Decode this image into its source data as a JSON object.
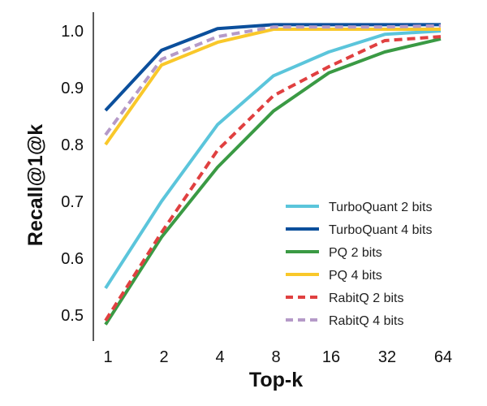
{
  "chart_data": {
    "type": "line",
    "title": "",
    "xlabel": "Top-k",
    "ylabel": "Recall@1@k",
    "categories": [
      "1",
      "2",
      "4",
      "8",
      "16",
      "32",
      "64"
    ],
    "yticks": [
      "0.5",
      "0.6",
      "0.7",
      "0.8",
      "0.9",
      "1.0"
    ],
    "ytick_values": [
      0.5,
      0.6,
      0.7,
      0.8,
      0.9,
      1.0
    ],
    "ylim": [
      0.454,
      1.033
    ],
    "grid": false,
    "legend_position": "bottom-right",
    "series": [
      {
        "name": "TurboQuant 2 bits",
        "color": "#5BC5DB",
        "dashed": false,
        "values": [
          0.547,
          0.7,
          0.835,
          0.921,
          0.963,
          0.994,
          1.0
        ]
      },
      {
        "name": "TurboQuant 4 bits",
        "color": "#0B4F9C",
        "dashed": false,
        "values": [
          0.86,
          0.966,
          1.004,
          1.011,
          1.011,
          1.011,
          1.011
        ]
      },
      {
        "name": "PQ 2 bits",
        "color": "#3A9A44",
        "dashed": false,
        "values": [
          0.483,
          0.637,
          0.76,
          0.859,
          0.926,
          0.963,
          0.986
        ]
      },
      {
        "name": "PQ 4 bits",
        "color": "#F9C82A",
        "dashed": false,
        "values": [
          0.8,
          0.94,
          0.98,
          1.003,
          1.003,
          1.003,
          1.003
        ]
      },
      {
        "name": "RabitQ 2 bits",
        "color": "#E04040",
        "dashed": true,
        "values": [
          0.49,
          0.645,
          0.79,
          0.886,
          0.937,
          0.983,
          0.99
        ]
      },
      {
        "name": "RabitQ 4 bits",
        "color": "#B59AC8",
        "dashed": true,
        "values": [
          0.817,
          0.95,
          0.99,
          1.007,
          1.007,
          1.007,
          1.009
        ]
      }
    ]
  }
}
